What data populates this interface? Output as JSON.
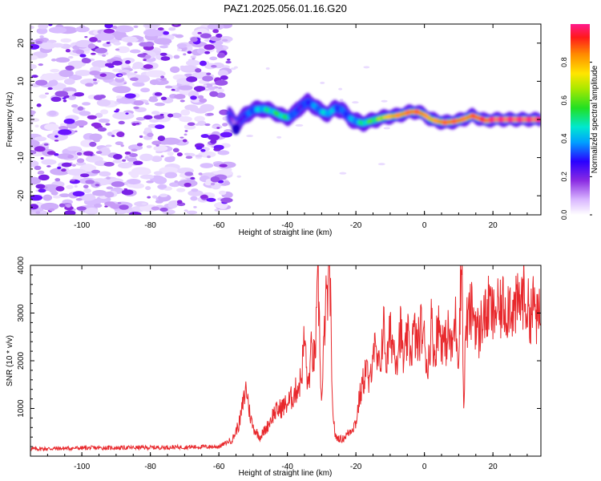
{
  "title": "PAZ1.2025.056.01.16.G20",
  "chart_data": [
    {
      "type": "heatmap",
      "xlabel": "Height of straight line (km)",
      "ylabel": "Frequency (Hz)",
      "xlim": [
        -115,
        34
      ],
      "ylim": [
        -25,
        25
      ],
      "xticks": [
        -100,
        -80,
        -60,
        -40,
        -20,
        0,
        20
      ],
      "yticks": [
        -20,
        -10,
        0,
        10,
        20
      ],
      "colorbar": {
        "label": "Normalized spectral amplitude",
        "range": [
          0,
          1
        ],
        "ticks": [
          0.0,
          0.2,
          0.4,
          0.6,
          0.8
        ]
      },
      "noise_region_x": [
        -115,
        -57
      ],
      "ridge": {
        "x": [
          -57,
          -55,
          -53,
          -50,
          -47,
          -44,
          -42,
          -40,
          -38,
          -36,
          -34,
          -32,
          -30,
          -28,
          -26,
          -24,
          -22,
          -20,
          -18,
          -16,
          -14,
          -12,
          -10,
          -8,
          -6,
          -4,
          -2,
          0,
          2,
          4,
          6,
          8,
          10,
          12,
          14,
          16,
          18,
          20,
          25,
          34
        ],
        "freq": [
          1,
          -1.5,
          0.5,
          2.5,
          2.8,
          2,
          1,
          0.5,
          1.5,
          3.5,
          4.5,
          3.5,
          2,
          1.5,
          3,
          2.5,
          0.5,
          -0.5,
          -1,
          -0.5,
          0,
          0.5,
          0.8,
          1,
          1.5,
          2,
          2,
          1.2,
          0,
          -0.5,
          -0.8,
          -0.6,
          -0.3,
          0.3,
          1,
          0.3,
          -0.3,
          0,
          0,
          0
        ],
        "amplitude": [
          0.25,
          0.15,
          0.3,
          0.4,
          0.5,
          0.55,
          0.6,
          0.55,
          0.35,
          0.3,
          0.35,
          0.4,
          0.45,
          0.5,
          0.4,
          0.35,
          0.4,
          0.45,
          0.55,
          0.6,
          0.65,
          0.7,
          0.75,
          0.8,
          0.8,
          0.85,
          0.85,
          0.8,
          0.75,
          0.8,
          0.85,
          0.85,
          0.85,
          0.8,
          0.85,
          0.9,
          0.9,
          0.95,
          0.95,
          0.95
        ]
      }
    },
    {
      "type": "line",
      "xlabel": "Height of straight line (km)",
      "ylabel": "SNR (10 * v/v)",
      "xlim": [
        -115,
        34
      ],
      "ylim": [
        0,
        4000
      ],
      "xticks": [
        -100,
        -80,
        -60,
        -40,
        -20,
        0,
        20
      ],
      "yticks": [
        1000,
        2000,
        3000,
        4000
      ],
      "series": [
        {
          "color": "#e8282c",
          "x": [
            -115,
            -100,
            -80,
            -60,
            -56,
            -54,
            -52,
            -51,
            -50,
            -48,
            -46,
            -44,
            -42,
            -40,
            -38,
            -36,
            -35,
            -34,
            -33,
            -32,
            -31,
            -30,
            -29,
            -28,
            -27.5,
            -27,
            -26,
            -24,
            -22,
            -20,
            -19,
            -18,
            -17,
            -16,
            -15,
            -14,
            -13,
            -12,
            -11,
            -10,
            -9,
            -8,
            -7,
            -6,
            -5,
            -4,
            -3,
            -2,
            -1,
            0,
            1,
            2,
            3,
            4,
            5,
            6,
            7,
            8,
            9,
            10,
            10.5,
            11,
            11.5,
            12,
            13,
            14,
            15,
            16,
            17,
            18,
            19,
            20,
            21,
            22,
            23,
            24,
            25,
            26,
            27,
            28,
            29,
            30,
            31,
            32,
            33,
            34
          ],
          "y": [
            150,
            170,
            180,
            200,
            350,
            700,
            1450,
            900,
            600,
            400,
            600,
            900,
            1000,
            1100,
            1300,
            1600,
            2500,
            1400,
            2200,
            2000,
            3600,
            1000,
            3000,
            3500,
            3750,
            1200,
            400,
            350,
            500,
            700,
            1200,
            1500,
            1900,
            1400,
            2400,
            2000,
            1800,
            2800,
            1900,
            2600,
            2300,
            2100,
            2700,
            1900,
            2500,
            2200,
            2600,
            2300,
            2700,
            2400,
            1800,
            2800,
            2100,
            2800,
            2500,
            2300,
            2600,
            2200,
            2900,
            2100,
            3500,
            4000,
            750,
            2700,
            2900,
            3100,
            2800,
            2500,
            3000,
            2900,
            3200,
            2900,
            3100,
            3000,
            3200,
            3050,
            3300,
            3000,
            3150,
            3250,
            3400,
            3100,
            3000,
            3200,
            2800,
            3000
          ]
        }
      ]
    }
  ]
}
